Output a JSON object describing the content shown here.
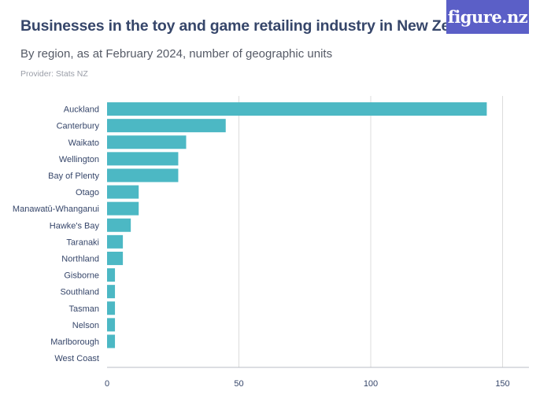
{
  "header": {
    "title": "Businesses in the toy and game retailing industry in New Zealand",
    "subtitle": "By region, as at February 2024, number of geographic units",
    "provider": "Provider: Stats NZ",
    "logo_text": "figure.nz"
  },
  "colors": {
    "bar": "#4cb8c4",
    "grid": "#dcdcdc",
    "title": "#36466a",
    "logo_bg": "#5b5fc7"
  },
  "chart_data": {
    "type": "bar",
    "orientation": "horizontal",
    "title": "Businesses in the toy and game retailing industry in New Zealand",
    "subtitle": "By region, as at February 2024, number of geographic units",
    "categories": [
      "Auckland",
      "Canterbury",
      "Waikato",
      "Wellington",
      "Bay of Plenty",
      "Otago",
      "Manawatū-Whanganui",
      "Hawke's Bay",
      "Taranaki",
      "Northland",
      "Gisborne",
      "Southland",
      "Tasman",
      "Nelson",
      "Marlborough",
      "West Coast"
    ],
    "values": [
      144,
      45,
      30,
      27,
      27,
      12,
      12,
      9,
      6,
      6,
      3,
      3,
      3,
      3,
      3,
      0
    ],
    "xlim": [
      0,
      160
    ],
    "xticks": [
      0,
      50,
      100,
      150
    ],
    "grid": true,
    "xlabel": "",
    "ylabel": ""
  }
}
